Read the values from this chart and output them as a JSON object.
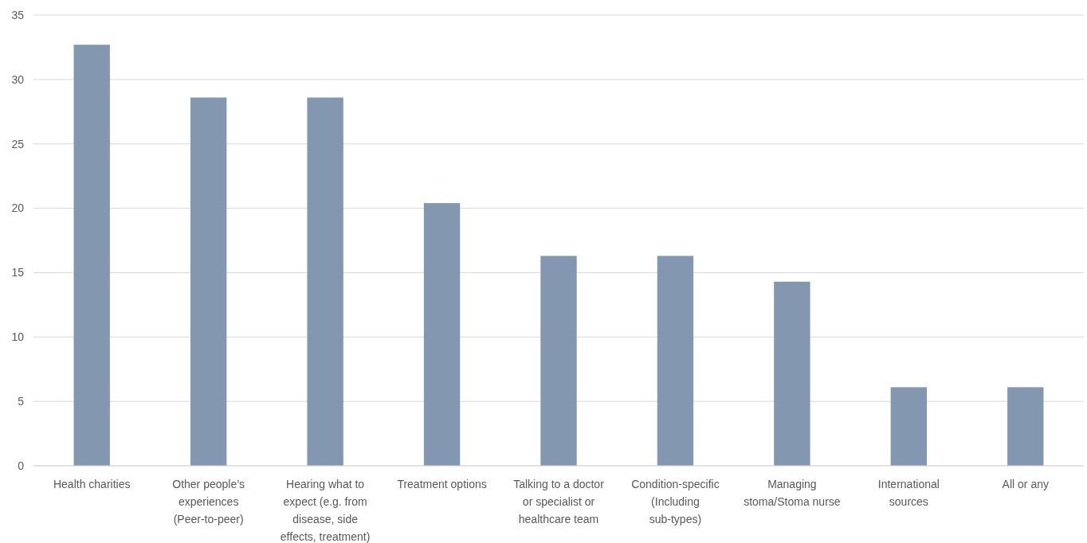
{
  "chart_data": {
    "type": "bar",
    "categories": [
      "Health charities",
      "Other people’s experiences (Peer-to-peer)",
      "Hearing what to expect (e.g. from disease, side effects, treatment)",
      "Treatment options",
      "Talking to a doctor or specialist or healthcare team",
      "Condition-specific (Including sub-types)",
      "Managing stoma/Stoma nurse",
      "International sources",
      "All or any"
    ],
    "values": [
      32.7,
      28.6,
      28.6,
      20.4,
      16.3,
      16.3,
      14.3,
      6.1,
      6.1
    ],
    "color": "#8497b0",
    "ylim": [
      0,
      35
    ],
    "yticks": [
      0,
      5,
      10,
      15,
      20,
      25,
      30,
      35
    ],
    "grid": "y"
  }
}
